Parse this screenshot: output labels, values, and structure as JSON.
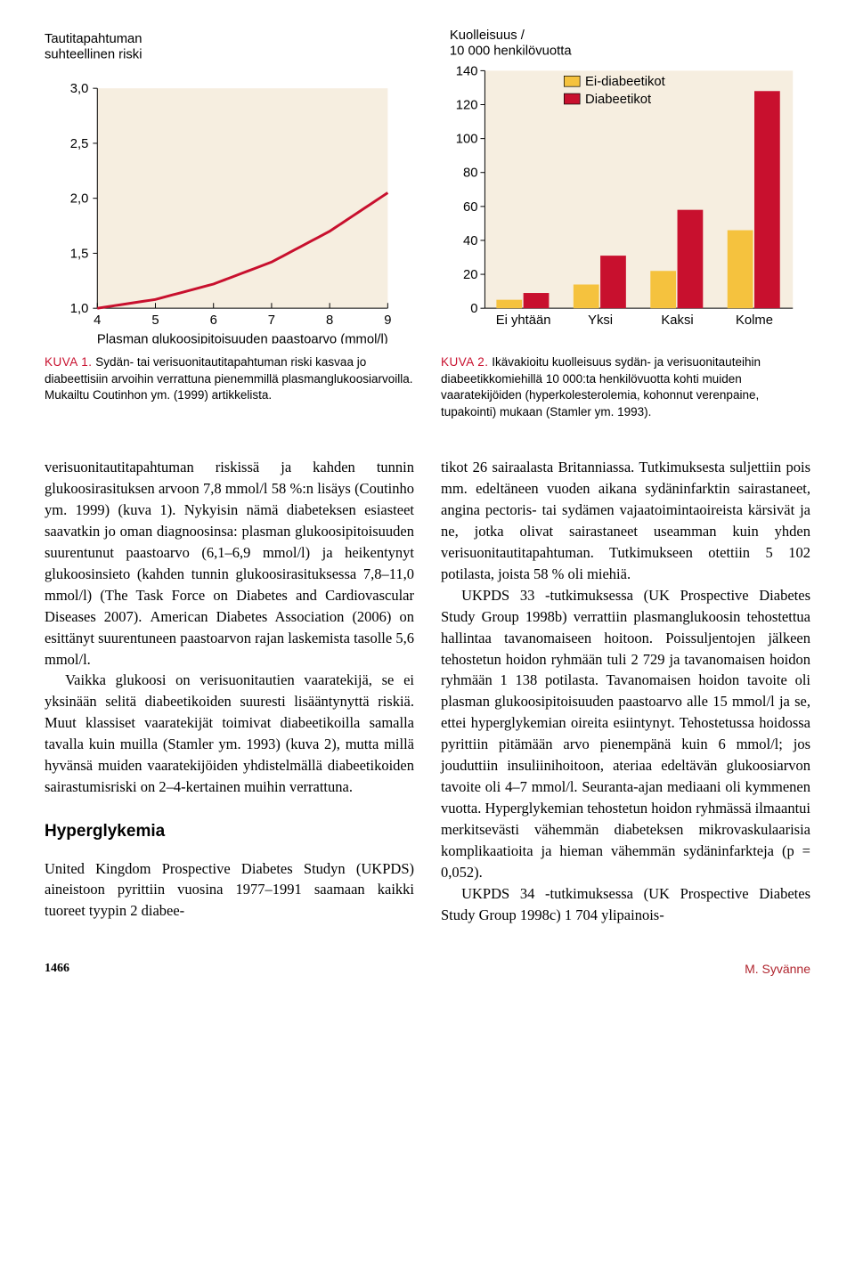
{
  "chart1": {
    "type": "line",
    "title": "Tautitapahtuman suhteellinen riski",
    "xaxis_label": "Plasman glukoosipitoisuuden paastoarvo (mmol/l)",
    "xlim": [
      4,
      9
    ],
    "ylim": [
      1.0,
      3.0
    ],
    "xticks": [
      4,
      5,
      6,
      7,
      8,
      9
    ],
    "yticks": [
      1.0,
      1.5,
      2.0,
      2.5,
      3.0
    ],
    "ytick_labels": [
      "1,0",
      "1,5",
      "2,0",
      "2,5",
      "3,0"
    ],
    "line_color": "#c8102e",
    "line_width": 3,
    "background_color": "#f6eee0",
    "title_fontsize": 15,
    "axis_fontsize": 15,
    "tick_fontsize": 15,
    "caption_label": "KUVA 1.",
    "caption_text": "Sydän- tai verisuonitautitapahtuman riski kasvaa jo diabeettisiin arvoihin verrattuna pienemmillä plasmanglukoosiarvoilla. Mukailtu Coutinhon ym. (1999) artikkelista.",
    "curve_points": [
      {
        "x": 4,
        "y": 1.0
      },
      {
        "x": 5,
        "y": 1.08
      },
      {
        "x": 6,
        "y": 1.22
      },
      {
        "x": 7,
        "y": 1.42
      },
      {
        "x": 8,
        "y": 1.7
      },
      {
        "x": 9,
        "y": 2.05
      }
    ]
  },
  "chart2": {
    "type": "grouped-bar",
    "title": "Kuolleisuus / 10 000 henkilövuotta",
    "ylim": [
      0,
      140
    ],
    "yticks": [
      0,
      20,
      40,
      60,
      80,
      100,
      120,
      140
    ],
    "categories": [
      "Ei yhtään",
      "Yksi",
      "Kaksi",
      "Kolme"
    ],
    "series": [
      {
        "name": "Ei-diabeetikot",
        "color": "#f5c23e",
        "values": [
          5,
          14,
          22,
          46
        ]
      },
      {
        "name": "Diabeetikot",
        "color": "#c8102e",
        "values": [
          9,
          31,
          58,
          128
        ]
      }
    ],
    "background_color": "#f6eee0",
    "bar_group_width": 0.7,
    "title_fontsize": 15,
    "tick_fontsize": 15,
    "legend_fontsize": 15,
    "caption_label": "KUVA 2.",
    "caption_text": "Ikävakioitu kuolleisuus sydän- ja verisuonitauteihin diabeetikkomiehillä 10 000:ta henkilövuotta kohti muiden vaaratekijöiden (hyperkolesterolemia, kohonnut verenpaine, tupakointi) mukaan (Stamler ym. 1993)."
  },
  "body": {
    "left": {
      "p1": "verisuonitautitapahtuman riskissä ja kahden tunnin glukoosirasituksen arvoon 7,8 mmol/l 58 %:n lisäys (Coutinho ym. 1999) (kuva 1). Nykyisin nämä diabeteksen esiasteet saavatkin jo oman diagnoosinsa: plasman glukoosipitoisuuden suurentunut paastoarvo (6,1–6,9 mmol/l) ja heikentynyt glukoosinsietо (kahden tunnin glukoosirasituksessa 7,8–11,0 mmol/l) (The Task Force on Diabetes and Cardiovascular Diseases 2007). American Diabetes Association (2006) on esittänyt suurentuneen paastoarvon rajan laskemista tasolle 5,6 mmol/l.",
      "p2": "Vaikka glukoosi on verisuonitautien vaaratekijä, se ei yksinään selitä diabeetikoiden suuresti lisääntynyttä riskiä. Muut klassiset vaaratekijät toimivat diabeetikoilla samalla tavalla kuin muilla (Stamler ym. 1993) (kuva 2), mutta millä hyvänsä muiden vaaratekijöiden yhdistelmällä diabeetikoiden sairastumisriski on 2–4-kertainen muihin verrattuna.",
      "heading": "Hyperglykemia",
      "p3": "United Kingdom Prospective Diabetes Studyn (UKPDS) aineistoon pyrittiin vuosina 1977–1991 saamaan kaikki tuoreet tyypin 2 diabee-"
    },
    "right": {
      "p1": "tikot 26 sairaalasta Britanniassa. Tutkimuksesta suljettiin pois mm. edeltäneen vuoden aikana sydäninfarktin sairastaneet, angina pectoris- tai sydämen vajaatoimintaoireista kärsivät ja ne, jotka olivat sairastaneet useamman kuin yhden verisuonitautitapahtuman. Tutkimukseen otettiin 5 102 potilasta, joista 58 % oli miehiä.",
      "p2": "UKPDS 33 -tutkimuksessa (UK Prospective Diabetes Study Group 1998b) verrattiin plasmanglukoosin tehostettua hallintaa tavanomaiseen hoitoon. Poissuljentojen jälkeen tehostetun hoidon ryhmään tuli 2 729 ja tavanomaisen hoidon ryhmään 1 138 potilasta. Tavanomaisen hoidon tavoite oli plasman glukoosipitoisuuden paastoarvo alle 15 mmol/l ja se, ettei hyperglykemian oireita esiintynyt. Tehostetussa hoidossa pyrittiin pitämään arvo pienempänä kuin 6 mmol/l; jos jouduttiin insuliinihoitoon, ateriaa edeltävän glukoosiarvon tavoite oli 4–7 mmol/l. Seuranta-ajan mediaani oli kymmenen vuotta. Hyperglykemian tehostetun hoidon ryhmässä ilmaantui merkitsevästi vähemmän diabeteksen mikrovaskulaarisia komplikaatioita ja hieman vähemmän sydäninfarkteja (p = 0,052).",
      "p3": "UKPDS 34 -tutkimuksessa (UK Prospective Diabetes Study Group 1998c) 1 704 ylipainois-"
    }
  },
  "footer": {
    "page": "1466",
    "author": "M. Syvänne"
  }
}
